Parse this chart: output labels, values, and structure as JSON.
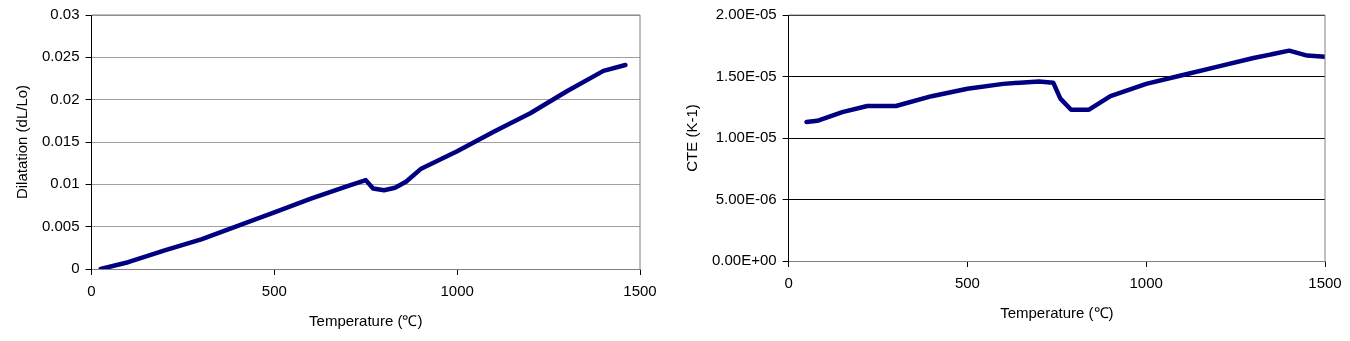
{
  "chart_data": [
    {
      "type": "line",
      "xlabel": "Temperature (℃)",
      "ylabel": "Dilatation (dL/Lo)",
      "xlim": [
        0,
        1500
      ],
      "xticks": [
        0,
        500,
        1000,
        1500
      ],
      "ylim": [
        0,
        0.03
      ],
      "yticks": [
        0,
        0.005,
        0.01,
        0.015,
        0.02,
        0.025,
        0.03
      ],
      "grid": "y",
      "legend": false,
      "marker": "none",
      "line_style": "solid",
      "series": [
        {
          "color": "#000080",
          "x": [
            25,
            100,
            200,
            300,
            400,
            500,
            600,
            700,
            750,
            770,
            800,
            830,
            860,
            900,
            1000,
            1100,
            1200,
            1300,
            1400,
            1460
          ],
          "values": [
            0,
            0.0008,
            0.0022,
            0.0035,
            0.0051,
            0.0067,
            0.0083,
            0.0098,
            0.0105,
            0.0095,
            0.0093,
            0.0096,
            0.0103,
            0.0118,
            0.0139,
            0.0162,
            0.0184,
            0.021,
            0.0234,
            0.0241
          ]
        }
      ]
    },
    {
      "type": "line",
      "xlabel": "Temperature (℃)",
      "ylabel": "CTE (K-1)",
      "xlim": [
        0,
        1500
      ],
      "xticks": [
        0,
        500,
        1000,
        1500
      ],
      "ylim": [
        0,
        2e-05
      ],
      "yticks": [
        {
          "value": 0,
          "label": "0.00E+00"
        },
        {
          "value": 5e-06,
          "label": "5.00E-06"
        },
        {
          "value": 1e-05,
          "label": "1.00E-05"
        },
        {
          "value": 1.5e-05,
          "label": "1.50E-05"
        },
        {
          "value": 2e-05,
          "label": "2.00E-05"
        }
      ],
      "grid": "y",
      "legend": false,
      "marker": "none",
      "line_style": "solid",
      "series": [
        {
          "color": "#000080",
          "x": [
            50,
            80,
            150,
            220,
            300,
            400,
            500,
            600,
            700,
            740,
            760,
            790,
            840,
            900,
            1000,
            1100,
            1200,
            1300,
            1400,
            1450,
            1500
          ],
          "values": [
            1.13e-05,
            1.14e-05,
            1.21e-05,
            1.26e-05,
            1.26e-05,
            1.34e-05,
            1.4e-05,
            1.44e-05,
            1.46e-05,
            1.45e-05,
            1.32e-05,
            1.23e-05,
            1.23e-05,
            1.34e-05,
            1.44e-05,
            1.51e-05,
            1.58e-05,
            1.65e-05,
            1.71e-05,
            1.67e-05,
            1.66e-05
          ]
        }
      ]
    }
  ]
}
